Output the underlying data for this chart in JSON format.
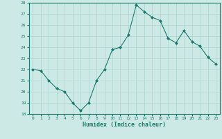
{
  "x": [
    0,
    1,
    2,
    3,
    4,
    5,
    6,
    7,
    8,
    9,
    10,
    11,
    12,
    13,
    14,
    15,
    16,
    17,
    18,
    19,
    20,
    21,
    22,
    23
  ],
  "y": [
    22,
    21.9,
    21,
    20.3,
    20,
    19,
    18.3,
    19,
    21,
    22,
    23.8,
    24,
    25.1,
    27.8,
    27.2,
    26.7,
    26.4,
    24.8,
    24.4,
    25.5,
    24.5,
    24.1,
    23.1,
    22.5
  ],
  "line_color": "#1a7a6e",
  "marker_color": "#1a7a6e",
  "bg_color": "#cce9e5",
  "grid_color": "#aad4cf",
  "tick_color": "#1a7a6e",
  "xlabel": "Humidex (Indice chaleur)",
  "ylim": [
    18,
    28
  ],
  "yticks": [
    18,
    19,
    20,
    21,
    22,
    23,
    24,
    25,
    26,
    27,
    28
  ],
  "xticks": [
    0,
    1,
    2,
    3,
    4,
    5,
    6,
    7,
    8,
    9,
    10,
    11,
    12,
    13,
    14,
    15,
    16,
    17,
    18,
    19,
    20,
    21,
    22,
    23
  ]
}
